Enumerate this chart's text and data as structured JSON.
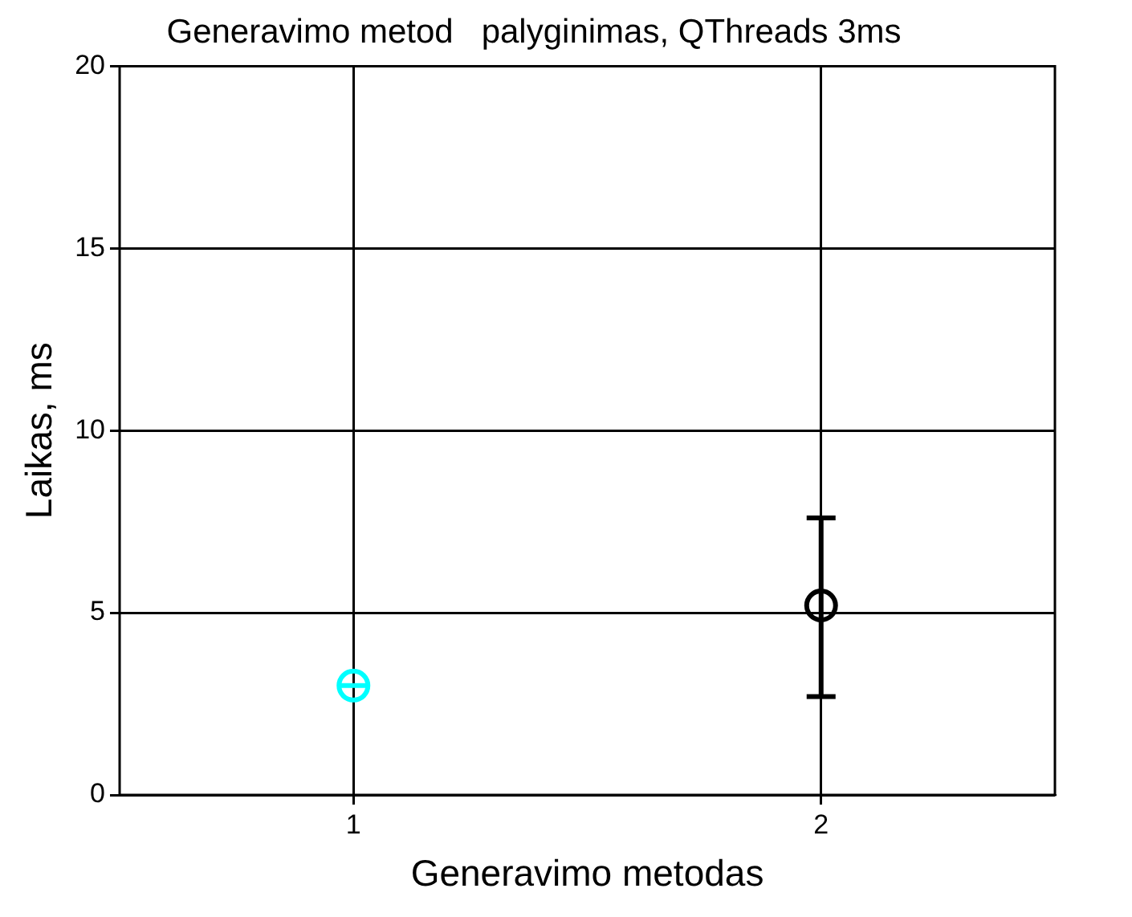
{
  "chart_data": {
    "type": "scatter",
    "title": "Generavimo metod   palyginimas, QThreads 3ms",
    "xlabel": "Generavimo metodas",
    "ylabel": "Laikas, ms",
    "xlim": [
      0.5,
      2.5
    ],
    "xticks": [
      1,
      2
    ],
    "ylim": [
      0,
      20
    ],
    "yticks": [
      0,
      5,
      10,
      15,
      20
    ],
    "grid": true,
    "marker": "circle",
    "series": [
      {
        "color": "#00ffff",
        "x": [
          1
        ],
        "values": [
          3.0
        ],
        "errors": [
          0
        ]
      },
      {
        "color": "#000000",
        "x": [
          2
        ],
        "values": [
          5.2
        ],
        "errors": [
          [
            2.7,
            7.6
          ]
        ]
      }
    ]
  }
}
